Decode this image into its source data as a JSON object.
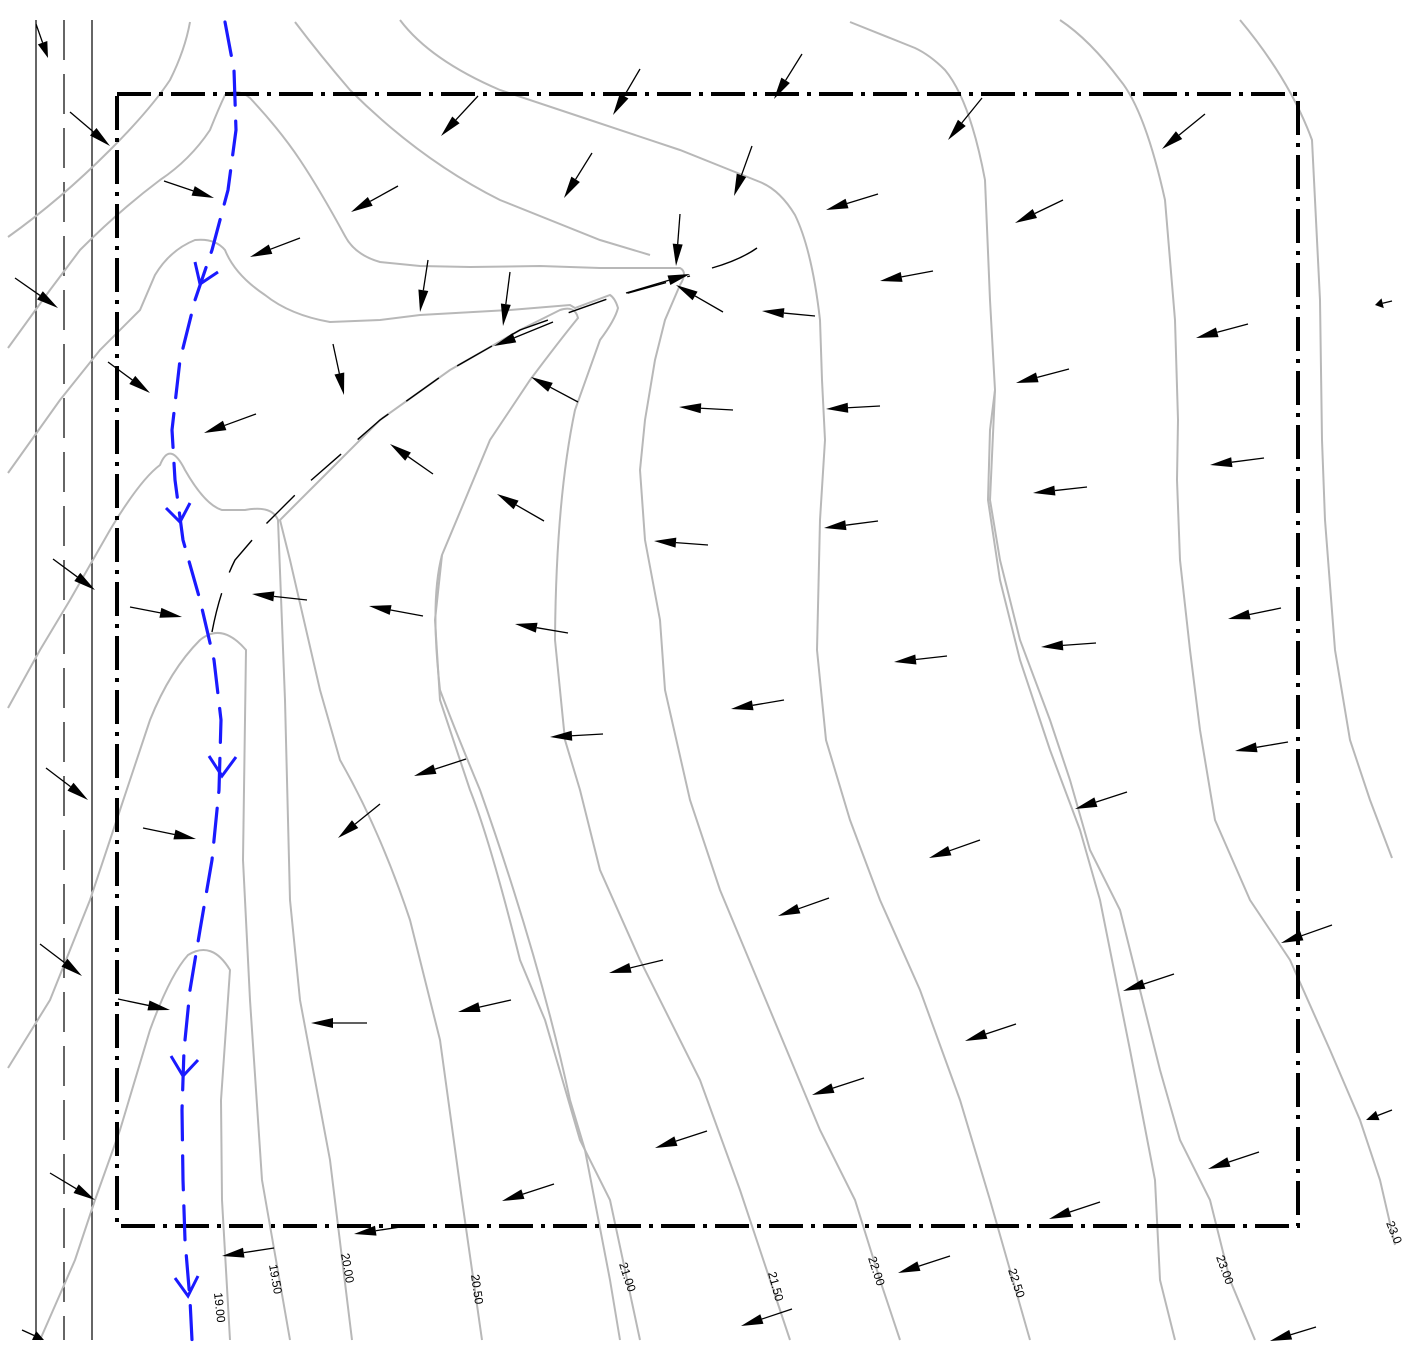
{
  "drawing": {
    "colors": {
      "background": "#ffffff",
      "contour": "#b8b8b8",
      "flow_line": "#1a1aff",
      "arrow": "#000000",
      "boundary": "#000000",
      "ridge": "#000000"
    },
    "contour_labels": [
      "19.00",
      "19.50",
      "20.00",
      "20.50",
      "21.00",
      "21.50",
      "22.00",
      "22.50",
      "23.00",
      "23.0"
    ]
  }
}
